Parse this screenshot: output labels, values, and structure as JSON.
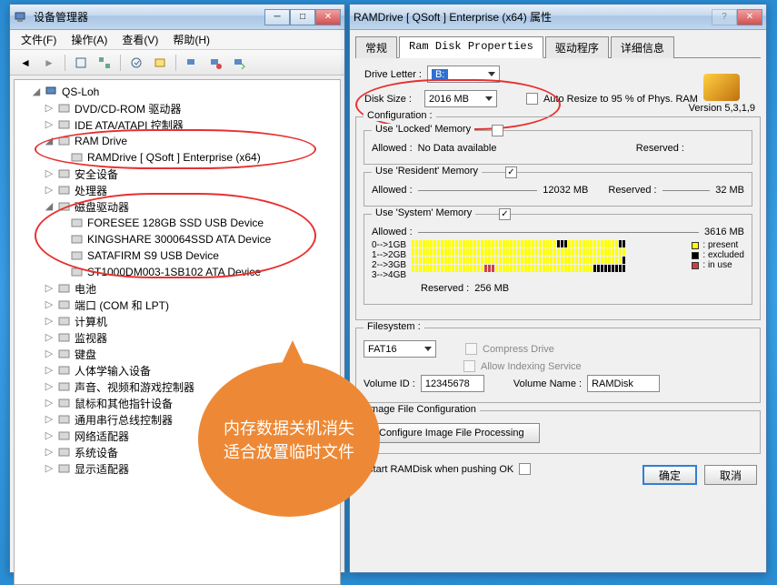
{
  "devmgr": {
    "title": "设备管理器",
    "menus": [
      "文件(F)",
      "操作(A)",
      "查看(V)",
      "帮助(H)"
    ],
    "root": "QS-Loh",
    "nodes": [
      {
        "label": "DVD/CD-ROM 驱动器",
        "ind": 2,
        "exp": ">"
      },
      {
        "label": "IDE ATA/ATAPI 控制器",
        "ind": 2,
        "exp": ">"
      },
      {
        "label": "RAM Drive",
        "ind": 2,
        "exp": "v"
      },
      {
        "label": "RAMDrive [ QSoft ] Enterprise (x64)",
        "ind": 3,
        "exp": ""
      },
      {
        "label": "安全设备",
        "ind": 2,
        "exp": ">"
      },
      {
        "label": "处理器",
        "ind": 2,
        "exp": ">"
      },
      {
        "label": "磁盘驱动器",
        "ind": 2,
        "exp": "v"
      },
      {
        "label": "FORESEE 128GB SSD USB Device",
        "ind": 3,
        "exp": ""
      },
      {
        "label": "KINGSHARE 300064SSD ATA Device",
        "ind": 3,
        "exp": ""
      },
      {
        "label": "SATAFIRM    S9 USB Device",
        "ind": 3,
        "exp": ""
      },
      {
        "label": "ST1000DM003-1SB102 ATA Device",
        "ind": 3,
        "exp": ""
      },
      {
        "label": "电池",
        "ind": 2,
        "exp": ">"
      },
      {
        "label": "端口 (COM 和 LPT)",
        "ind": 2,
        "exp": ">"
      },
      {
        "label": "计算机",
        "ind": 2,
        "exp": ">"
      },
      {
        "label": "监视器",
        "ind": 2,
        "exp": ">"
      },
      {
        "label": "键盘",
        "ind": 2,
        "exp": ">"
      },
      {
        "label": "人体学输入设备",
        "ind": 2,
        "exp": ">"
      },
      {
        "label": "声音、视频和游戏控制器",
        "ind": 2,
        "exp": ">"
      },
      {
        "label": "鼠标和其他指针设备",
        "ind": 2,
        "exp": ">"
      },
      {
        "label": "通用串行总线控制器",
        "ind": 2,
        "exp": ">"
      },
      {
        "label": "网络适配器",
        "ind": 2,
        "exp": ">"
      },
      {
        "label": "系统设备",
        "ind": 2,
        "exp": ">"
      },
      {
        "label": "显示适配器",
        "ind": 2,
        "exp": ">"
      }
    ]
  },
  "props": {
    "title": "RAMDrive [ QSoft ] Enterprise (x64) 属性",
    "tabs": [
      "常规",
      "Ram Disk Properties",
      "驱动程序",
      "详细信息"
    ],
    "version_label": "Version  5,3,1,9",
    "drive_letter_lbl": "Drive Letter :",
    "drive_letter_val": "B:",
    "disk_size_lbl": "Disk Size :",
    "disk_size_val": "2016 MB",
    "auto_resize": "Auto Resize to   95 % of Phys. RAM",
    "config_legend": "Configuration :",
    "locked_legend": "Use 'Locked' Memory",
    "locked_allowed": "Allowed :",
    "locked_val": "No Data available",
    "locked_reserved": "Reserved :",
    "resident_legend": "Use 'Resident' Memory",
    "resident_allowed": "Allowed :",
    "resident_allowed_val": "12032 MB",
    "resident_reserved": "Reserved :",
    "resident_reserved_val": "32 MB",
    "system_legend": "Use 'System' Memory",
    "system_allowed": "Allowed :",
    "system_allowed_val": "3616 MB",
    "range0": "0-->1GB",
    "range1": "1-->2GB",
    "range2": "2-->3GB",
    "range3": "3-->4GB",
    "leg_present": ": present",
    "leg_excluded": ": excluded",
    "leg_inuse": ": in use",
    "system_reserved": "Reserved :",
    "system_reserved_val": "256 MB",
    "filesystem_legend": "Filesystem :",
    "fs_val": "FAT16",
    "compress": "Compress Drive",
    "indexing": "Allow Indexing Service",
    "volid_lbl": "Volume ID :",
    "volid_val": "12345678",
    "volname_lbl": "Volume Name :",
    "volname_val": "RAMDisk",
    "imgfile_legend": "Image File Configuration",
    "configure_btn": "Configure Image File Processing",
    "restart_lbl": "Restart RAMDisk when pushing OK",
    "ok": "确定",
    "cancel": "取消"
  },
  "bubble": {
    "line1": "内存数据关机消失",
    "line2": "适合放置临时文件"
  },
  "colors": {
    "present": "#ffff00",
    "excluded": "#000000",
    "inuse": "#d04040"
  }
}
